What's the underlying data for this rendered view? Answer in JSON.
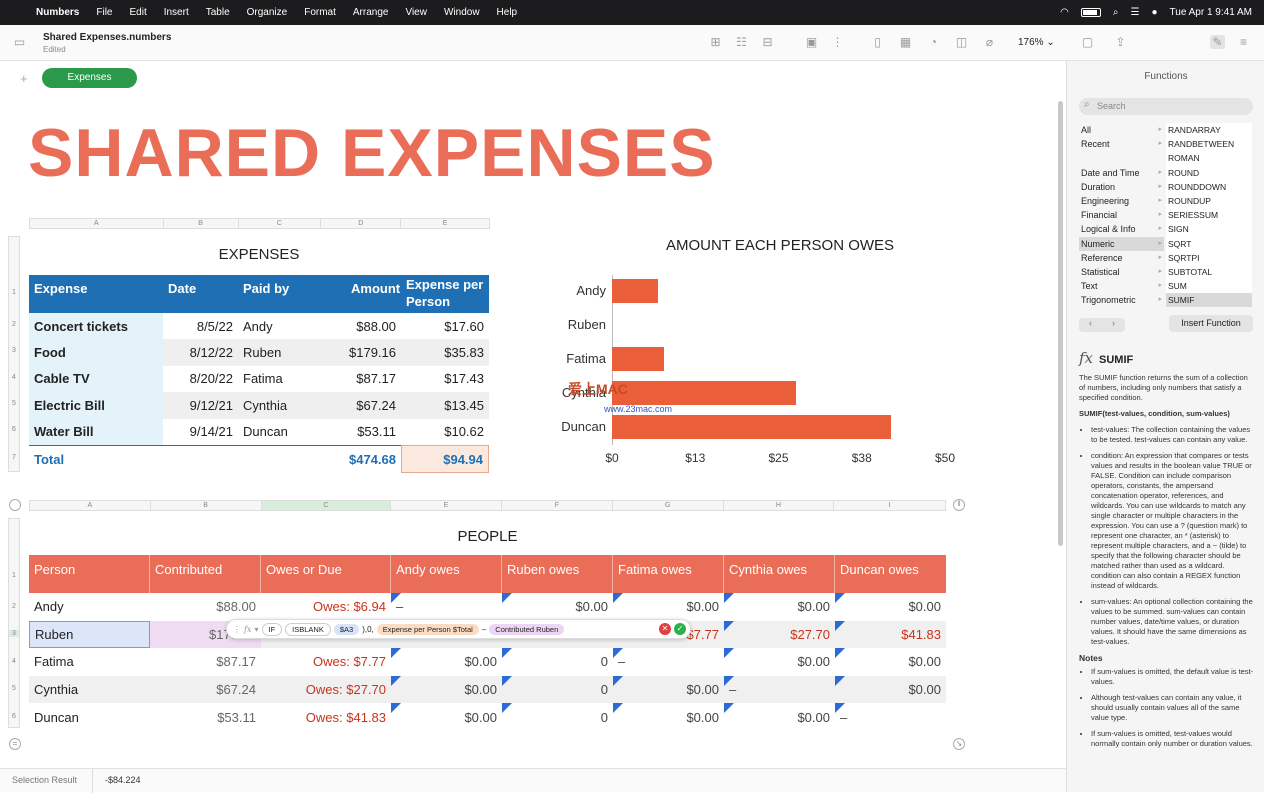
{
  "menubar": {
    "items": [
      "Numbers",
      "File",
      "Edit",
      "Insert",
      "Table",
      "Organize",
      "Format",
      "Arrange",
      "View",
      "Window",
      "Help"
    ],
    "datetime": "Tue Apr 1  9:41 AM"
  },
  "toolbar": {
    "doc_title": "Shared Expenses.numbers",
    "doc_status": "Edited",
    "zoom": "176% ⌄"
  },
  "sheet_tab": "Expenses",
  "page_title": "SHARED EXPENSES",
  "expenses": {
    "title": "EXPENSES",
    "col_letters": [
      "A",
      "B",
      "C",
      "D",
      "E"
    ],
    "headers": [
      "Expense",
      "Date",
      "Paid by",
      "Amount",
      "Expense per Person"
    ],
    "rows": [
      [
        "Concert tickets",
        "8/5/22",
        "Andy",
        "$88.00",
        "$17.60"
      ],
      [
        "Food",
        "8/12/22",
        "Ruben",
        "$179.16",
        "$35.83"
      ],
      [
        "Cable TV",
        "8/20/22",
        "Fatima",
        "$87.17",
        "$17.43"
      ],
      [
        "Electric Bill",
        "9/12/21",
        "Cynthia",
        "$67.24",
        "$13.45"
      ],
      [
        "Water Bill",
        "9/14/21",
        "Duncan",
        "$53.11",
        "$10.62"
      ]
    ],
    "total": {
      "label": "Total",
      "amount": "$474.68",
      "per_person": "$94.94"
    }
  },
  "chart_data": {
    "type": "bar",
    "orientation": "horizontal",
    "title": "AMOUNT EACH PERSON OWES",
    "categories": [
      "Andy",
      "Ruben",
      "Fatima",
      "Cynthia",
      "Duncan"
    ],
    "values": [
      6.94,
      0,
      7.77,
      27.7,
      41.83
    ],
    "xlim": [
      0,
      50
    ],
    "x_ticks": [
      "$0",
      "$13",
      "$25",
      "$38",
      "$50"
    ],
    "color": "#ea5f3a"
  },
  "people": {
    "title": "PEOPLE",
    "col_letters": [
      "A",
      "B",
      "C",
      "E",
      "F",
      "G",
      "H",
      "I"
    ],
    "headers": [
      "Person",
      "Contributed",
      "Owes or Due",
      "Andy owes",
      "Ruben owes",
      "Fatima owes",
      "Cynthia owes",
      "Duncan owes"
    ],
    "rows": [
      [
        "Andy",
        "$88.00",
        "Owes: $6.94",
        "–",
        "$0.00",
        "$0.00",
        "$0.00",
        "$0.00"
      ],
      [
        "Ruben",
        "$179.16",
        "",
        "",
        "",
        "$7.77",
        "$27.70",
        "$41.83"
      ],
      [
        "Fatima",
        "$87.17",
        "Owes: $7.77",
        "$0.00",
        "0",
        "–",
        "$0.00",
        "$0.00"
      ],
      [
        "Cynthia",
        "$67.24",
        "Owes: $27.70",
        "$0.00",
        "0",
        "$0.00",
        "–",
        "$0.00"
      ],
      [
        "Duncan",
        "$53.11",
        "Owes: $41.83",
        "$0.00",
        "0",
        "$0.00",
        "$0.00",
        "–"
      ]
    ]
  },
  "formula_bar": {
    "fx": "fx",
    "if_token": "IF",
    "isblank_token": "ISBLANK",
    "ref_token": "$A3",
    "sep": "),0,",
    "token2": "Expense per Person $Total",
    "minus": "–",
    "token3": "Contributed Ruben"
  },
  "status_bar": {
    "label": "Selection Result",
    "value": "-$84.224"
  },
  "sidebar": {
    "title": "Functions",
    "search_placeholder": "Search",
    "categories": [
      "All",
      "Recent",
      "",
      "Date and Time",
      "Duration",
      "Engineering",
      "Financial",
      "Logical & Info",
      "Numeric",
      "Reference",
      "Statistical",
      "Text",
      "Trigonometric"
    ],
    "selected_category": "Numeric",
    "functions": [
      "RANDARRAY",
      "RANDBETWEEN",
      "ROMAN",
      "ROUND",
      "ROUNDDOWN",
      "ROUNDUP",
      "SERIESSUM",
      "SIGN",
      "SQRT",
      "SQRTPI",
      "SUBTOTAL",
      "SUM",
      "SUMIF"
    ],
    "selected_function": "SUMIF",
    "insert_button": "Insert Function",
    "function_name": "SUMIF",
    "description": "The SUMIF function returns the sum of a collection of numbers, including only numbers that satisfy a specified condition.",
    "syntax": "SUMIF(test-values, condition, sum-values)",
    "args": [
      "test-values: The collection containing the values to be tested. test-values can contain any value.",
      "condition: An expression that compares or tests values and results in the boolean value TRUE or FALSE. Condition can include comparison operators, constants, the ampersand concatenation operator, references, and wildcards. You can use wildcards to match any single character or multiple characters in the expression. You can use a ? (question mark) to represent one character, an * (asterisk) to represent multiple characters, and a ~ (tilde) to specify that the following character should be matched rather than used as a wildcard. condition can also contain a REGEX function instead of wildcards.",
      "sum-values: An optional collection containing the values to be summed. sum-values can contain number values, date/time values, or duration values. It should have the same dimensions as test-values."
    ],
    "notes_title": "Notes",
    "notes": [
      "If sum-values is omitted, the default value is test-values.",
      "Although test-values can contain any value, it should usually contain values all of the same value type.",
      "If sum-values is omitted, test-values would normally contain only number or duration values."
    ]
  },
  "watermark": {
    "text": "爱上MAC",
    "url": "www.23mac.com"
  }
}
